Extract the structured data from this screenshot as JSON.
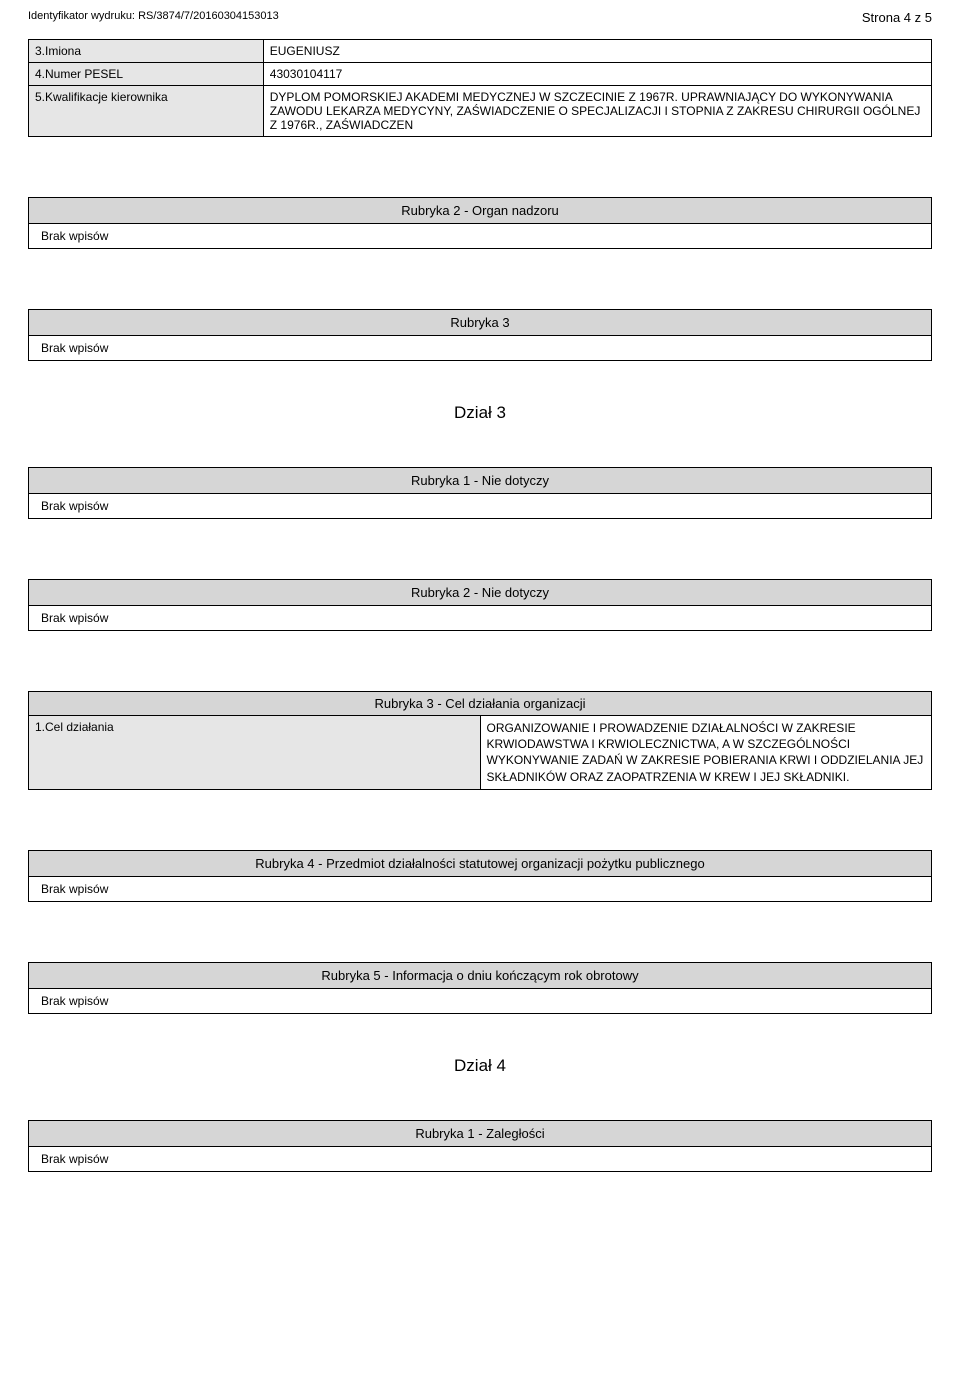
{
  "header": {
    "identifier_label": "Identyfikator wydruku:",
    "identifier_value": "RS/3874/7/20160304153013",
    "page_info": "Strona 4 z 5"
  },
  "top_table": {
    "rows": [
      {
        "label": "3.Imiona",
        "value": "EUGENIUSZ"
      },
      {
        "label": "4.Numer PESEL",
        "value": "43030104117"
      },
      {
        "label": "5.Kwalifikacje kierownika",
        "value": "DYPLOM POMORSKIEJ AKADEMI MEDYCZNEJ W SZCZECINIE Z 1967R. UPRAWNIAJĄCY DO WYKONYWANIA ZAWODU LEKARZA MEDYCYNY, ZAŚWIADCZENIE O SPECJALIZACJI I STOPNIA Z ZAKRESU CHIRURGII OGÓLNEJ Z 1976R., ZAŚWIADCZEN"
      }
    ]
  },
  "sections": {
    "rubryka2_organ": {
      "title": "Rubryka 2 - Organ nadzoru",
      "body": "Brak wpisów"
    },
    "rubryka3_plain": {
      "title": "Rubryka 3",
      "body": "Brak wpisów"
    },
    "dzial3_title": "Dział 3",
    "rubryka1_nd": {
      "title": "Rubryka 1 - Nie dotyczy",
      "body": "Brak wpisów"
    },
    "rubryka2_nd": {
      "title": "Rubryka 2 - Nie dotyczy",
      "body": "Brak wpisów"
    },
    "rubryka3_cel": {
      "title": "Rubryka 3 - Cel działania organizacji",
      "row_label": "1.Cel działania",
      "row_value": "ORGANIZOWANIE I PROWADZENIE DZIAŁALNOŚCI W ZAKRESIE KRWIODAWSTWA I KRWIOLECZNICTWA, A W SZCZEGÓLNOŚCI WYKONYWANIE ZADAŃ W ZAKRESIE POBIERANIA KRWI I ODDZIELANIA JEJ SKŁADNIKÓW ORAZ ZAOPATRZENIA W KREW I JEJ SKŁADNIKI."
    },
    "rubryka4_stat": {
      "title": "Rubryka 4 - Przedmiot działalności statutowej organizacji pożytku publicznego",
      "body": "Brak wpisów"
    },
    "rubryka5_info": {
      "title": "Rubryka 5 - Informacja o dniu kończącym rok obrotowy",
      "body": "Brak wpisów"
    },
    "dzial4_title": "Dział 4",
    "rubryka1_zal": {
      "title": "Rubryka 1 - Zaległości",
      "body": "Brak wpisów"
    }
  }
}
